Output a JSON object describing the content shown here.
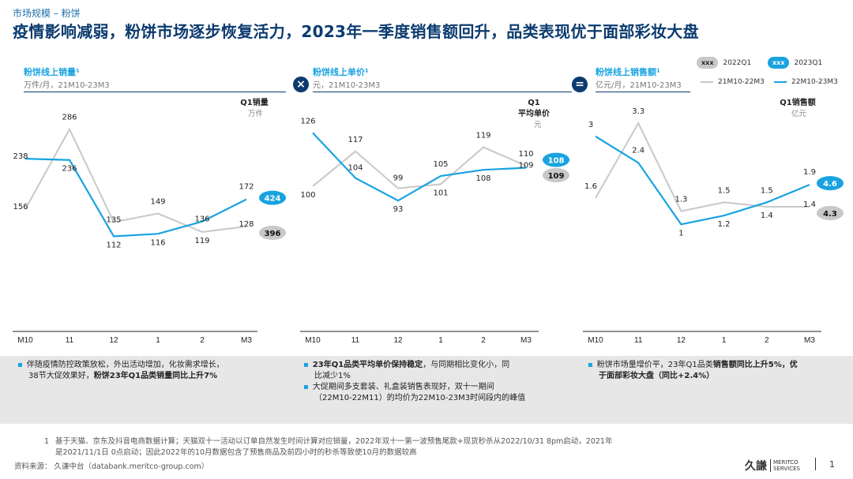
{
  "header": {
    "breadcrumb": "市场规模 – 粉饼",
    "title": "疫情影响减弱，粉饼市场逐步恢复活力，2023年一季度销售额回升，品类表现优于面部彩妆大盘"
  },
  "legend": {
    "pill_label": "xxx",
    "q2022": "2022Q1",
    "q2023": "2023Q1",
    "series_prev": "21M10-22M3",
    "series_curr": "22M10-23M3"
  },
  "colors": {
    "prev": "#c8c8c8",
    "curr": "#18a3e0",
    "navy": "#0b3b6f",
    "badge_prev": "#c8c8c8"
  },
  "operators": {
    "multiply": "×",
    "equals": "="
  },
  "chart_data": [
    {
      "type": "line",
      "title": "粉饼线上销量¹",
      "unit_line": "万件/月，21M10-23M3",
      "q1_label": "Q1销量",
      "q1_unit": "万件",
      "categories": [
        "M10",
        "11",
        "12",
        "1",
        "2",
        "M3"
      ],
      "ylim": [
        60,
        310
      ],
      "series": [
        {
          "name": "21M10-22M3",
          "values": [
            156,
            286,
            135,
            149,
            119,
            128
          ]
        },
        {
          "name": "22M10-23M3",
          "values": [
            238,
            236,
            112,
            116,
            136,
            172
          ]
        }
      ],
      "q1_badges": {
        "curr": "424",
        "prev": "396"
      }
    },
    {
      "type": "line",
      "title": "粉饼线上单价¹",
      "unit_line": "元，21M10-23M3",
      "q1_label": "Q1",
      "q1_label2": "平均单价",
      "q1_unit": "元",
      "categories": [
        "M10",
        "11",
        "12",
        "1",
        "2",
        "M3"
      ],
      "ylim": [
        60,
        135
      ],
      "series": [
        {
          "name": "21M10-22M3",
          "values": [
            100,
            117,
            99,
            101,
            119,
            110
          ]
        },
        {
          "name": "22M10-23M3",
          "values": [
            126,
            104,
            93,
            105,
            108,
            109
          ]
        }
      ],
      "q1_badges": {
        "curr": "108",
        "prev": "109"
      }
    },
    {
      "type": "line",
      "title": "粉饼线上销售额¹",
      "unit_line": "亿元/月，21M10-23M3",
      "q1_label": "Q1销售额",
      "q1_unit": "亿元",
      "categories": [
        "M10",
        "11",
        "12",
        "1",
        "2",
        "M3"
      ],
      "ylim": [
        0,
        3.5
      ],
      "series": [
        {
          "name": "21M10-22M3",
          "values": [
            1.6,
            3.3,
            1.3,
            1.5,
            1.4,
            1.4
          ]
        },
        {
          "name": "22M10-23M3",
          "values": [
            3.0,
            2.4,
            1.0,
            1.2,
            1.5,
            1.9
          ]
        }
      ],
      "q1_badges": {
        "curr": "4.6",
        "prev": "4.3"
      }
    }
  ],
  "notes": {
    "left_1": "伴随疫情防控政策放松，外出活动增加，化妆需求增长，",
    "left_2a": "38节大促效果好，",
    "left_2b": "粉饼23年Q1品类销量同比上升7%",
    "mid_1a": "23年Q1品类平均单价保持稳定",
    "mid_1b": "，与同期相比变化小，同",
    "mid_2": "比减少1%",
    "mid_3": "大促期间多支套装、礼盒装销售表现好，双十一期间",
    "mid_4": "（22M10-22M11）的均价为22M10-23M3时间段内的峰值",
    "right_1a": "粉饼市场量增价平，23年Q1品类",
    "right_1b": "销售额同比上升5%，优",
    "right_2a": "于面部彩妆大盘",
    "right_2b": "（同比+2.4%）"
  },
  "footer": {
    "footnote_num": "1",
    "footnote_1": "基于天猫、京东及抖音电商数据计算；天猫双十一活动以订单自然发生时间计算对应销量，2022年双十一第一波预售尾款+现货秒杀从2022/10/31 8pm启动，2021年",
    "footnote_2": "是2021/11/1日 0点启动；因此2022年的10月数据包含了预售商品及前四小时的秒杀等致使10月的数据较高",
    "source": "资料来源： 久谦中台（databank.meritco-group.com）",
    "logo_cn": "久謙",
    "logo_en1": "MERITCO",
    "logo_en2": "SERVICES",
    "page": "1"
  }
}
